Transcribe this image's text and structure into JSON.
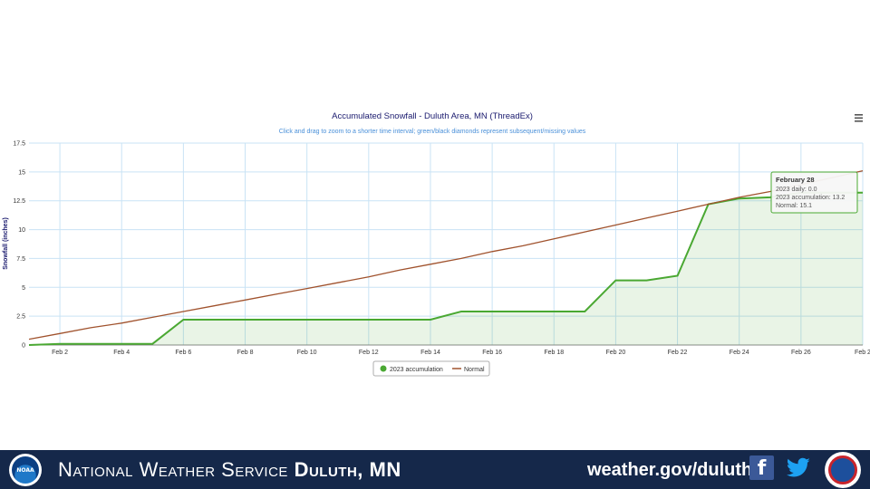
{
  "chart_data": {
    "type": "line",
    "title": "Accumulated Snowfall - Duluth Area, MN (ThreadEx)",
    "subtitle": "Click and drag to zoom to a shorter time interval; green/black diamonds represent subsequent/missing values",
    "ylabel": "Snowfall (inches)",
    "ylim": [
      0,
      17.5
    ],
    "yticks": [
      "0",
      "2.5",
      "5",
      "7.5",
      "10",
      "12.5",
      "15",
      "17.5"
    ],
    "xlim": [
      1,
      28
    ],
    "xticks": [
      {
        "day": 2,
        "label": "Feb 2"
      },
      {
        "day": 4,
        "label": "Feb 4"
      },
      {
        "day": 6,
        "label": "Feb 6"
      },
      {
        "day": 8,
        "label": "Feb 8"
      },
      {
        "day": 10,
        "label": "Feb 10"
      },
      {
        "day": 12,
        "label": "Feb 12"
      },
      {
        "day": 14,
        "label": "Feb 14"
      },
      {
        "day": 16,
        "label": "Feb 16"
      },
      {
        "day": 18,
        "label": "Feb 18"
      },
      {
        "day": 20,
        "label": "Feb 20"
      },
      {
        "day": 22,
        "label": "Feb 22"
      },
      {
        "day": 24,
        "label": "Feb 24"
      },
      {
        "day": 26,
        "label": "Feb 26"
      },
      {
        "day": 28,
        "label": "Feb 2"
      }
    ],
    "grid": true,
    "legend_position": "bottom-center",
    "series": [
      {
        "name": "2023 accumulation",
        "color": "#4aa832",
        "area": true,
        "x": [
          1,
          2,
          3,
          4,
          5,
          6,
          7,
          8,
          9,
          10,
          11,
          12,
          13,
          14,
          15,
          16,
          17,
          18,
          19,
          20,
          21,
          22,
          23,
          24,
          25,
          26,
          27,
          28
        ],
        "y": [
          0,
          0.1,
          0.1,
          0.1,
          0.1,
          2.2,
          2.2,
          2.2,
          2.2,
          2.2,
          2.2,
          2.2,
          2.2,
          2.2,
          2.9,
          2.9,
          2.9,
          2.9,
          2.9,
          5.6,
          5.6,
          6.0,
          12.2,
          12.7,
          12.8,
          13.2,
          13.2,
          13.2
        ]
      },
      {
        "name": "Normal",
        "color": "#a0522d",
        "area": false,
        "x": [
          1,
          2,
          3,
          4,
          5,
          6,
          7,
          8,
          9,
          10,
          11,
          12,
          13,
          14,
          15,
          16,
          17,
          18,
          19,
          20,
          21,
          22,
          23,
          24,
          25,
          26,
          27,
          28
        ],
        "y": [
          0.5,
          1.0,
          1.5,
          1.9,
          2.4,
          2.9,
          3.4,
          3.9,
          4.4,
          4.9,
          5.4,
          5.9,
          6.5,
          7.0,
          7.5,
          8.1,
          8.6,
          9.2,
          9.8,
          10.4,
          11.0,
          11.6,
          12.2,
          12.8,
          13.3,
          13.9,
          14.5,
          15.1
        ]
      }
    ],
    "tooltip": {
      "title": "February 28",
      "lines": [
        "2023 daily: 0.0",
        "2023 accumulation: 13.2",
        "Normal: 15.1"
      ]
    },
    "menu_icon": "hamburger-menu-icon"
  },
  "footer": {
    "org_name": "National Weather Service",
    "office": "Duluth, MN",
    "url": "weather.gov/duluth",
    "noaa_logo_text": "NOAA",
    "icons": [
      "noaa-logo-icon",
      "facebook-icon",
      "twitter-icon",
      "nws-seal-icon"
    ],
    "background_color": "#15284a"
  }
}
